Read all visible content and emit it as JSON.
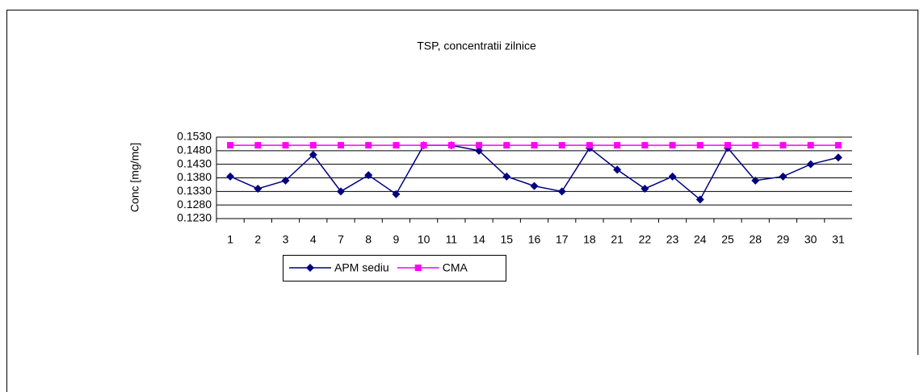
{
  "chart_data": {
    "type": "line",
    "title": "TSP, concentratii zilnice",
    "y_label": "Conc [mg/mc]",
    "categories": [
      "1",
      "2",
      "3",
      "4",
      "7",
      "8",
      "9",
      "10",
      "11",
      "14",
      "15",
      "16",
      "17",
      "18",
      "21",
      "22",
      "23",
      "24",
      "25",
      "28",
      "29",
      "30",
      "31"
    ],
    "series": [
      {
        "name": "APM sediu",
        "color": "#000080",
        "marker": "diamond",
        "values": [
          0.1385,
          0.134,
          0.137,
          0.1465,
          0.133,
          0.139,
          0.132,
          0.15,
          0.15,
          0.148,
          0.1385,
          0.135,
          0.133,
          0.149,
          0.141,
          0.134,
          0.1385,
          0.13,
          0.149,
          0.137,
          0.1385,
          0.143,
          0.1455
        ]
      },
      {
        "name": "CMA",
        "color": "#ff00ff",
        "marker": "square",
        "values": [
          0.15,
          0.15,
          0.15,
          0.15,
          0.15,
          0.15,
          0.15,
          0.15,
          0.15,
          0.15,
          0.15,
          0.15,
          0.15,
          0.15,
          0.15,
          0.15,
          0.15,
          0.15,
          0.15,
          0.15,
          0.15,
          0.15,
          0.15
        ]
      }
    ],
    "ylim": [
      0.123,
      0.153
    ],
    "yticks": [
      {
        "value": 0.123,
        "label": "0.1230"
      },
      {
        "value": 0.128,
        "label": "0.1280"
      },
      {
        "value": 0.133,
        "label": "0.1330"
      },
      {
        "value": 0.138,
        "label": "0.1380"
      },
      {
        "value": 0.143,
        "label": "0.1430"
      },
      {
        "value": 0.148,
        "label": "0.1480"
      },
      {
        "value": 0.153,
        "label": "0.1530"
      }
    ],
    "grid": true,
    "legend": "bottom"
  }
}
